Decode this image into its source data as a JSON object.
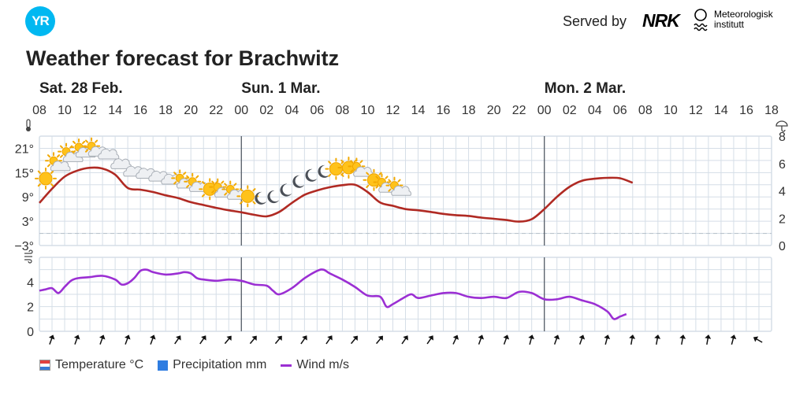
{
  "header": {
    "logo_text": "YR",
    "served_by": "Served by",
    "nrk_text": "NRK",
    "met_line1": "Meteorologisk",
    "met_line2": "institutt"
  },
  "title": "Weather forecast for Brachwitz",
  "chart_data": {
    "type": "line",
    "day_labels": [
      {
        "label": "Sat. 28 Feb.",
        "hour_index": 0
      },
      {
        "label": "Sun. 1 Mar.",
        "hour_index": 8
      },
      {
        "label": "Mon. 2 Mar.",
        "hour_index": 20
      }
    ],
    "hour_ticks": [
      "08",
      "10",
      "12",
      "14",
      "16",
      "18",
      "20",
      "22",
      "00",
      "02",
      "04",
      "06",
      "08",
      "10",
      "12",
      "14",
      "16",
      "18",
      "20",
      "22",
      "00",
      "02",
      "04",
      "06",
      "08",
      "10",
      "12",
      "14",
      "16",
      "18"
    ],
    "day_separators_at_index": [
      8,
      20
    ],
    "temperature": {
      "name": "Temperature °C",
      "color": "#b02a23",
      "y_ticks": [
        "21°",
        "15°",
        "9°",
        "3°",
        "−3°"
      ],
      "y_tick_values": [
        21,
        15,
        9,
        3,
        -3
      ],
      "ylim": [
        -3,
        24
      ],
      "zero_line_dashed": true,
      "points": [
        {
          "x": 0,
          "y": 7.5
        },
        {
          "x": 1,
          "y": 11
        },
        {
          "x": 2,
          "y": 14
        },
        {
          "x": 3,
          "y": 15.5
        },
        {
          "x": 4,
          "y": 16.2
        },
        {
          "x": 5,
          "y": 16
        },
        {
          "x": 6,
          "y": 14.5
        },
        {
          "x": 7,
          "y": 11.2
        },
        {
          "x": 8,
          "y": 10.8
        },
        {
          "x": 9,
          "y": 10.2
        },
        {
          "x": 10,
          "y": 9.4
        },
        {
          "x": 11,
          "y": 8.7
        },
        {
          "x": 12,
          "y": 7.7
        },
        {
          "x": 13,
          "y": 7.0
        },
        {
          "x": 14,
          "y": 6.3
        },
        {
          "x": 15,
          "y": 5.7
        },
        {
          "x": 16,
          "y": 5.2
        },
        {
          "x": 17,
          "y": 4.6
        },
        {
          "x": 18,
          "y": 4.2
        },
        {
          "x": 19,
          "y": 5.3
        },
        {
          "x": 20,
          "y": 7.5
        },
        {
          "x": 21,
          "y": 9.5
        },
        {
          "x": 22,
          "y": 10.6
        },
        {
          "x": 23,
          "y": 11.4
        },
        {
          "x": 24,
          "y": 11.9
        },
        {
          "x": 25,
          "y": 12.0
        },
        {
          "x": 26,
          "y": 10.2
        },
        {
          "x": 27,
          "y": 7.6
        },
        {
          "x": 28,
          "y": 6.8
        },
        {
          "x": 29,
          "y": 6.0
        },
        {
          "x": 30,
          "y": 5.7
        },
        {
          "x": 31,
          "y": 5.3
        },
        {
          "x": 32,
          "y": 4.8
        },
        {
          "x": 33,
          "y": 4.5
        },
        {
          "x": 34,
          "y": 4.3
        },
        {
          "x": 35,
          "y": 3.9
        },
        {
          "x": 36,
          "y": 3.6
        },
        {
          "x": 37,
          "y": 3.3
        },
        {
          "x": 38,
          "y": 2.9
        },
        {
          "x": 39,
          "y": 3.5
        },
        {
          "x": 40,
          "y": 6.0
        },
        {
          "x": 41,
          "y": 9.0
        },
        {
          "x": 42,
          "y": 11.5
        },
        {
          "x": 43,
          "y": 13.0
        },
        {
          "x": 44,
          "y": 13.5
        },
        {
          "x": 45,
          "y": 13.7
        },
        {
          "x": 46,
          "y": 13.6
        },
        {
          "x": 47,
          "y": 12.5
        }
      ]
    },
    "precipitation": {
      "name": "Precipitation mm",
      "color": "#2f7de1",
      "y_ticks": [
        "8",
        "6",
        "4",
        "2",
        "0"
      ],
      "y_tick_values": [
        8,
        6,
        4,
        2,
        0
      ],
      "ylim": [
        0,
        8
      ],
      "values": []
    },
    "wind": {
      "name": "Wind m/s",
      "color": "#9b2fd3",
      "y_ticks": [
        "4",
        "2",
        "0"
      ],
      "y_tick_values": [
        4,
        2,
        0
      ],
      "ylim": [
        0,
        6
      ],
      "points": [
        {
          "x": 0,
          "y": 3.3
        },
        {
          "x": 0.5,
          "y": 3.4
        },
        {
          "x": 1,
          "y": 3.5
        },
        {
          "x": 1.5,
          "y": 3.1
        },
        {
          "x": 2,
          "y": 3.6
        },
        {
          "x": 2.5,
          "y": 4.1
        },
        {
          "x": 3,
          "y": 4.3
        },
        {
          "x": 4,
          "y": 4.4
        },
        {
          "x": 5,
          "y": 4.5
        },
        {
          "x": 6,
          "y": 4.2
        },
        {
          "x": 6.5,
          "y": 3.8
        },
        {
          "x": 7,
          "y": 3.9
        },
        {
          "x": 7.5,
          "y": 4.3
        },
        {
          "x": 8,
          "y": 4.9
        },
        {
          "x": 8.5,
          "y": 5.0
        },
        {
          "x": 9,
          "y": 4.8
        },
        {
          "x": 10,
          "y": 4.6
        },
        {
          "x": 11,
          "y": 4.7
        },
        {
          "x": 11.5,
          "y": 4.8
        },
        {
          "x": 12,
          "y": 4.7
        },
        {
          "x": 12.5,
          "y": 4.3
        },
        {
          "x": 13,
          "y": 4.2
        },
        {
          "x": 14,
          "y": 4.1
        },
        {
          "x": 15,
          "y": 4.2
        },
        {
          "x": 16,
          "y": 4.1
        },
        {
          "x": 17,
          "y": 3.8
        },
        {
          "x": 18,
          "y": 3.7
        },
        {
          "x": 18.5,
          "y": 3.3
        },
        {
          "x": 19,
          "y": 3.0
        },
        {
          "x": 20,
          "y": 3.5
        },
        {
          "x": 21,
          "y": 4.3
        },
        {
          "x": 22,
          "y": 4.9
        },
        {
          "x": 22.5,
          "y": 5.0
        },
        {
          "x": 23,
          "y": 4.7
        },
        {
          "x": 24,
          "y": 4.2
        },
        {
          "x": 25,
          "y": 3.6
        },
        {
          "x": 26,
          "y": 2.9
        },
        {
          "x": 27,
          "y": 2.8
        },
        {
          "x": 27.5,
          "y": 2.0
        },
        {
          "x": 28,
          "y": 2.2
        },
        {
          "x": 29,
          "y": 2.8
        },
        {
          "x": 29.5,
          "y": 3.0
        },
        {
          "x": 30,
          "y": 2.7
        },
        {
          "x": 31,
          "y": 2.9
        },
        {
          "x": 32,
          "y": 3.1
        },
        {
          "x": 33,
          "y": 3.1
        },
        {
          "x": 34,
          "y": 2.8
        },
        {
          "x": 35,
          "y": 2.7
        },
        {
          "x": 36,
          "y": 2.8
        },
        {
          "x": 37,
          "y": 2.7
        },
        {
          "x": 38,
          "y": 3.2
        },
        {
          "x": 39,
          "y": 3.1
        },
        {
          "x": 40,
          "y": 2.6
        },
        {
          "x": 41,
          "y": 2.6
        },
        {
          "x": 42,
          "y": 2.8
        },
        {
          "x": 43,
          "y": 2.5
        },
        {
          "x": 44,
          "y": 2.2
        },
        {
          "x": 45,
          "y": 1.6
        },
        {
          "x": 45.5,
          "y": 1.0
        },
        {
          "x": 46,
          "y": 1.2
        },
        {
          "x": 46.5,
          "y": 1.4
        }
      ]
    },
    "weather_symbols": [
      {
        "x": 0.5,
        "icon": "sun"
      },
      {
        "x": 1.5,
        "icon": "partly-cloudy"
      },
      {
        "x": 2.5,
        "icon": "partly-cloudy"
      },
      {
        "x": 3.5,
        "icon": "partly-cloudy"
      },
      {
        "x": 4.5,
        "icon": "partly-cloudy"
      },
      {
        "x": 5.5,
        "icon": "cloud"
      },
      {
        "x": 6.5,
        "icon": "cloud"
      },
      {
        "x": 7.5,
        "icon": "cloud"
      },
      {
        "x": 8.5,
        "icon": "cloud"
      },
      {
        "x": 9.5,
        "icon": "cloud"
      },
      {
        "x": 10.5,
        "icon": "cloud"
      },
      {
        "x": 11.5,
        "icon": "partly-cloudy"
      },
      {
        "x": 12.5,
        "icon": "partly-cloudy"
      },
      {
        "x": 13.5,
        "icon": "sun"
      },
      {
        "x": 14.5,
        "icon": "partly-cloudy"
      },
      {
        "x": 15.5,
        "icon": "partly-cloudy"
      },
      {
        "x": 16.5,
        "icon": "sun"
      },
      {
        "x": 17.5,
        "icon": "moon"
      },
      {
        "x": 18.5,
        "icon": "moon"
      },
      {
        "x": 19.5,
        "icon": "moon"
      },
      {
        "x": 20.5,
        "icon": "moon"
      },
      {
        "x": 21.5,
        "icon": "moon"
      },
      {
        "x": 22.5,
        "icon": "moon"
      },
      {
        "x": 23.5,
        "icon": "sun"
      },
      {
        "x": 24.5,
        "icon": "sun"
      },
      {
        "x": 25.5,
        "icon": "partly-cloudy"
      },
      {
        "x": 26.5,
        "icon": "sun"
      },
      {
        "x": 27.5,
        "icon": "partly-cloudy"
      },
      {
        "x": 28.5,
        "icon": "partly-cloudy"
      }
    ],
    "wind_arrows_deg": [
      20,
      20,
      20,
      20,
      20,
      35,
      35,
      40,
      40,
      40,
      35,
      35,
      40,
      40,
      35,
      35,
      25,
      20,
      20,
      15,
      20,
      20,
      15,
      10,
      10,
      10,
      10,
      15,
      -60
    ]
  },
  "legend": {
    "temperature": "Temperature °C",
    "precipitation": "Precipitation mm",
    "wind": "Wind m/s"
  },
  "colors": {
    "grid": "#d5dee7",
    "day_separator": "#555c66",
    "axis_text": "#333333"
  }
}
